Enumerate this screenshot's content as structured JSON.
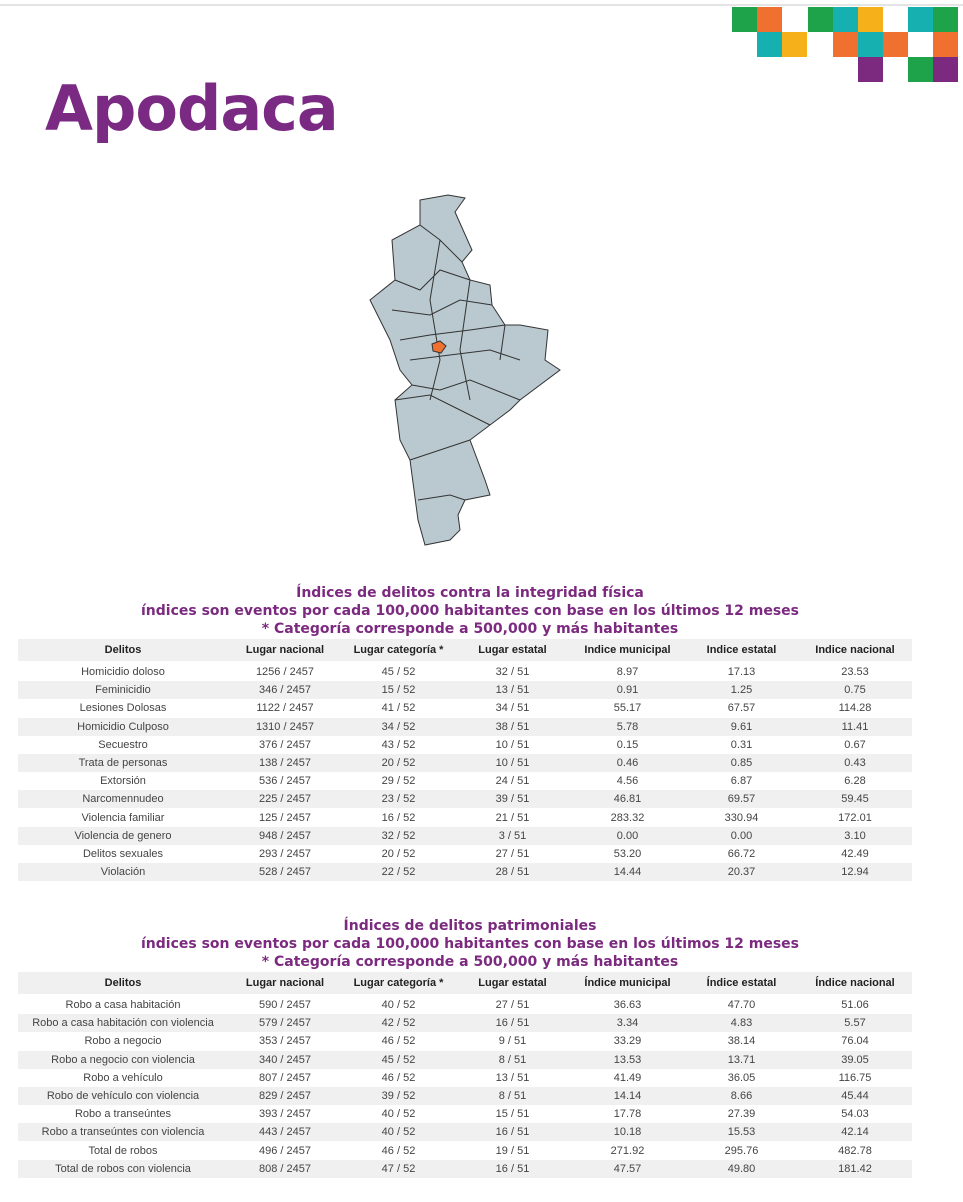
{
  "header": {
    "title": "Apodaca"
  },
  "tables": [
    {
      "title": [
        "Índices de delitos contra la integridad física",
        "índices son eventos por cada 100,000 habitantes con base en los últimos 12 meses",
        "* Categoría corresponde a 500,000 y más habitantes"
      ],
      "columns": [
        "Delitos",
        "Lugar nacional",
        "Lugar categoría *",
        "Lugar estatal",
        "Indice municipal",
        "Indice estatal",
        "Indice nacional"
      ],
      "rows": [
        [
          "Homicidio doloso",
          "1256 / 2457",
          "45 / 52",
          "32 / 51",
          "8.97",
          "17.13",
          "23.53"
        ],
        [
          "Feminicidio",
          "346 / 2457",
          "15 / 52",
          "13 / 51",
          "0.91",
          "1.25",
          "0.75"
        ],
        [
          "Lesiones Dolosas",
          "1122 / 2457",
          "41 / 52",
          "34 / 51",
          "55.17",
          "67.57",
          "114.28"
        ],
        [
          "Homicidio Culposo",
          "1310 / 2457",
          "34 / 52",
          "38 / 51",
          "5.78",
          "9.61",
          "11.41"
        ],
        [
          "Secuestro",
          "376 / 2457",
          "43 / 52",
          "10 / 51",
          "0.15",
          "0.31",
          "0.67"
        ],
        [
          "Trata de personas",
          "138 / 2457",
          "20 / 52",
          "10 / 51",
          "0.46",
          "0.85",
          "0.43"
        ],
        [
          "Extorsión",
          "536 / 2457",
          "29 / 52",
          "24 / 51",
          "4.56",
          "6.87",
          "6.28"
        ],
        [
          "Narcomennudeo",
          "225 / 2457",
          "23 / 52",
          "39 / 51",
          "46.81",
          "69.57",
          "59.45"
        ],
        [
          "Violencia familiar",
          "125 / 2457",
          "16 / 52",
          "21 / 51",
          "283.32",
          "330.94",
          "172.01"
        ],
        [
          "Violencia de genero",
          "948 / 2457",
          "32 / 52",
          "3 / 51",
          "0.00",
          "0.00",
          "3.10"
        ],
        [
          "Delitos sexuales",
          "293 / 2457",
          "20 / 52",
          "27 / 51",
          "53.20",
          "66.72",
          "42.49"
        ],
        [
          "Violación",
          "528 / 2457",
          "22 / 52",
          "28 / 51",
          "14.44",
          "20.37",
          "12.94"
        ]
      ]
    },
    {
      "title": [
        "Índices de delitos patrimoniales",
        "índices son eventos por cada 100,000 habitantes con base en los últimos 12 meses",
        "* Categoría corresponde a 500,000 y más habitantes"
      ],
      "columns": [
        "Delitos",
        "Lugar nacional",
        "Lugar categoría *",
        "Lugar estatal",
        "Índice municipal",
        "Índice estatal",
        "Índice nacional"
      ],
      "rows": [
        [
          "Robo a casa habitación",
          "590 / 2457",
          "40 / 52",
          "27 / 51",
          "36.63",
          "47.70",
          "51.06"
        ],
        [
          "Robo a casa habitación con violencia",
          "579 / 2457",
          "42 / 52",
          "16 / 51",
          "3.34",
          "4.83",
          "5.57"
        ],
        [
          "Robo a negocio",
          "353 / 2457",
          "46 / 52",
          "9 / 51",
          "33.29",
          "38.14",
          "76.04"
        ],
        [
          "Robo a negocio con violencia",
          "340 / 2457",
          "45 / 52",
          "8 / 51",
          "13.53",
          "13.71",
          "39.05"
        ],
        [
          "Robo a vehículo",
          "807 / 2457",
          "46 / 52",
          "13 / 51",
          "41.49",
          "36.05",
          "116.75"
        ],
        [
          "Robo de vehículo con violencia",
          "829 / 2457",
          "39 / 52",
          "8 / 51",
          "14.14",
          "8.66",
          "45.44"
        ],
        [
          "Robo a transeúntes",
          "393 / 2457",
          "40 / 52",
          "15 / 51",
          "17.78",
          "27.39",
          "54.03"
        ],
        [
          "Robo a transeúntes con violencia",
          "443 / 2457",
          "40 / 52",
          "16 / 51",
          "10.18",
          "15.53",
          "42.14"
        ],
        [
          "Total de robos",
          "496 / 2457",
          "46 / 52",
          "19 / 51",
          "271.92",
          "295.76",
          "482.78"
        ],
        [
          "Total de robos con violencia",
          "808 / 2457",
          "47 / 52",
          "16 / 51",
          "47.57",
          "49.80",
          "181.42"
        ]
      ]
    }
  ]
}
